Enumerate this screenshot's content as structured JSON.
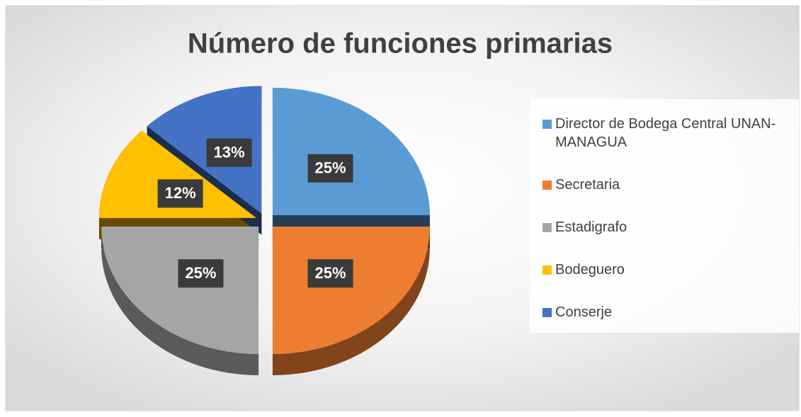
{
  "chart_data": {
    "type": "pie",
    "title": "Número de funciones primarias",
    "categories": [
      "Director de Bodega Central UNAN-MANAGUA",
      "Secretaria",
      "Estadigrafo",
      "Bodeguero",
      "Conserje"
    ],
    "values": [
      25,
      25,
      25,
      12,
      13
    ],
    "value_labels": [
      "25%",
      "25%",
      "25%",
      "12%",
      "13%"
    ],
    "colors": [
      "#5b9bd5",
      "#ed7d31",
      "#a5a5a5",
      "#ffc000",
      "#4472c4"
    ],
    "legend": "right"
  }
}
